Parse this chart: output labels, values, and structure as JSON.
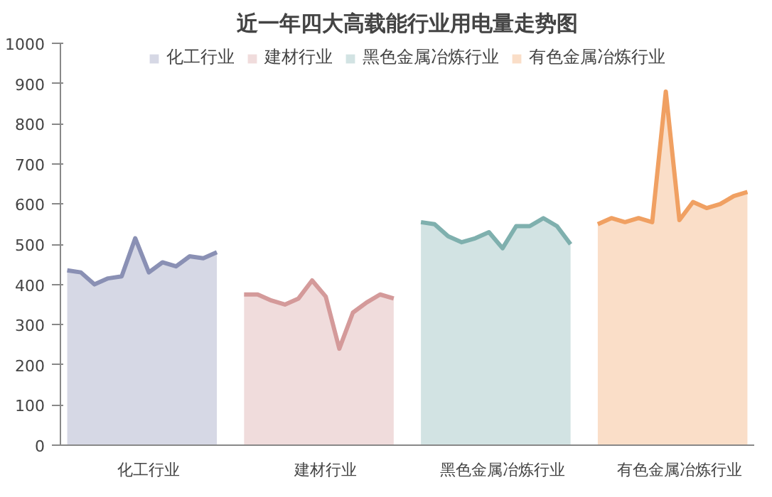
{
  "chart_data": {
    "type": "area",
    "title": "近一年四大高载能行业用电量走势图",
    "categories": [
      null,
      null,
      null,
      null,
      null,
      null,
      "化工行业",
      null,
      null,
      null,
      null,
      null,
      null,
      null,
      null,
      null,
      null,
      null,
      null,
      "建材行业",
      null,
      null,
      null,
      null,
      null,
      null,
      null,
      null,
      null,
      null,
      null,
      null,
      "黑色金属冶炼行业",
      null,
      null,
      null,
      null,
      null,
      null,
      null,
      null,
      null,
      null,
      null,
      null,
      "有色金属冶炼行业",
      null,
      null,
      null,
      null,
      null
    ],
    "ylim": [
      0,
      1000
    ],
    "yticks": [
      0,
      100,
      200,
      300,
      400,
      500,
      600,
      700,
      800,
      900,
      1000
    ],
    "grid": false,
    "legend": "top",
    "series": [
      {
        "name": "化工行业",
        "color": "#8a90b4",
        "values": [
          435,
          430,
          400,
          415,
          420,
          515,
          430,
          455,
          445,
          470,
          465,
          480,
          null,
          null,
          null,
          null,
          null,
          null,
          null,
          null,
          null,
          null,
          null,
          null,
          null,
          null,
          null,
          null,
          null,
          null,
          null,
          null,
          null,
          null,
          null,
          null,
          null,
          null,
          null,
          null,
          null,
          null,
          null,
          null,
          null,
          null,
          null,
          null,
          null,
          null,
          null
        ]
      },
      {
        "name": "建材行业",
        "color": "#d49a9a",
        "values": [
          null,
          null,
          null,
          null,
          null,
          null,
          null,
          null,
          null,
          null,
          null,
          null,
          null,
          375,
          375,
          360,
          350,
          365,
          410,
          370,
          240,
          330,
          355,
          375,
          365,
          null,
          null,
          null,
          null,
          null,
          null,
          null,
          null,
          null,
          null,
          null,
          null,
          null,
          null,
          null,
          null,
          null,
          null,
          null,
          null,
          null,
          null,
          null,
          null,
          null,
          null
        ]
      },
      {
        "name": "黑色金属冶炼行业",
        "color": "#7fb0ae",
        "values": [
          null,
          null,
          null,
          null,
          null,
          null,
          null,
          null,
          null,
          null,
          null,
          null,
          null,
          null,
          null,
          null,
          null,
          null,
          null,
          null,
          null,
          null,
          null,
          null,
          null,
          null,
          555,
          550,
          520,
          505,
          515,
          530,
          490,
          545,
          545,
          565,
          545,
          500,
          null,
          null,
          null,
          null,
          null,
          null,
          null,
          null,
          null,
          null,
          null,
          null,
          null
        ]
      },
      {
        "name": "有色金属冶炼行业",
        "color": "#f0a062",
        "values": [
          null,
          null,
          null,
          null,
          null,
          null,
          null,
          null,
          null,
          null,
          null,
          null,
          null,
          null,
          null,
          null,
          null,
          null,
          null,
          null,
          null,
          null,
          null,
          null,
          null,
          null,
          null,
          null,
          null,
          null,
          null,
          null,
          null,
          null,
          null,
          null,
          null,
          null,
          null,
          550,
          565,
          555,
          565,
          555,
          880,
          560,
          605,
          590,
          600,
          620,
          630
        ]
      }
    ]
  }
}
